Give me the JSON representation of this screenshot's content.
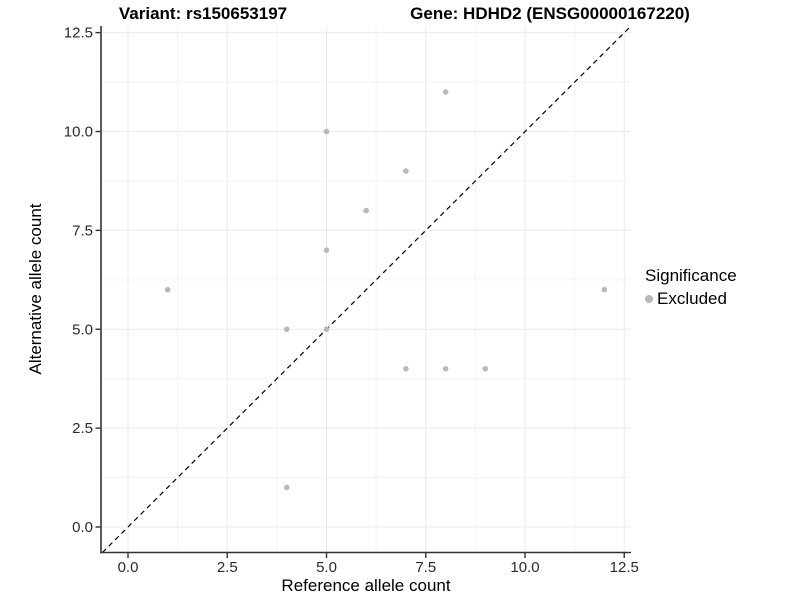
{
  "titles": {
    "left": "Variant: rs150653197",
    "right": "Gene: HDHD2 (ENSG00000167220)"
  },
  "chart_data": {
    "type": "scatter",
    "title": "Variant: rs150653197 | Gene: HDHD2 (ENSG00000167220)",
    "xlabel": "Reference allele count",
    "ylabel": "Alternative allele count",
    "xlim": [
      -0.68,
      12.67
    ],
    "ylim": [
      -0.65,
      12.67
    ],
    "grid": "major+minor",
    "x_ticks": {
      "values": [
        0,
        2.5,
        5,
        7.5,
        10,
        12.5
      ],
      "labels": [
        "0.0",
        "2.5",
        "5.0",
        "7.5",
        "10.0",
        "12.5"
      ]
    },
    "y_ticks": {
      "values": [
        0,
        2.5,
        5,
        7.5,
        10,
        12.5
      ],
      "labels": [
        "0.0",
        "2.5",
        "5.0",
        "7.5",
        "10.0",
        "12.5"
      ]
    },
    "points": [
      {
        "x": 1,
        "y": 6
      },
      {
        "x": 4,
        "y": 1
      },
      {
        "x": 4,
        "y": 5
      },
      {
        "x": 5,
        "y": 5
      },
      {
        "x": 5,
        "y": 7
      },
      {
        "x": 5,
        "y": 10
      },
      {
        "x": 6,
        "y": 8
      },
      {
        "x": 7,
        "y": 4
      },
      {
        "x": 7,
        "y": 9
      },
      {
        "x": 8,
        "y": 4
      },
      {
        "x": 8,
        "y": 11
      },
      {
        "x": 9,
        "y": 4
      },
      {
        "x": 12,
        "y": 6
      }
    ],
    "identity_line": {
      "style": "dashed",
      "color": "#000000"
    },
    "legend": {
      "title": "Significance",
      "position": "right",
      "items": [
        {
          "label": "Excluded",
          "color": "#b9b9b9"
        }
      ]
    },
    "colors": {
      "point": "#b9b9b9",
      "grid_major": "#ebebeb",
      "grid_minor": "#f3f3f3",
      "axis_line": "#333333",
      "tick_mark": "#333333",
      "tick_label": "#2b2b2b",
      "text": "#000000"
    }
  }
}
